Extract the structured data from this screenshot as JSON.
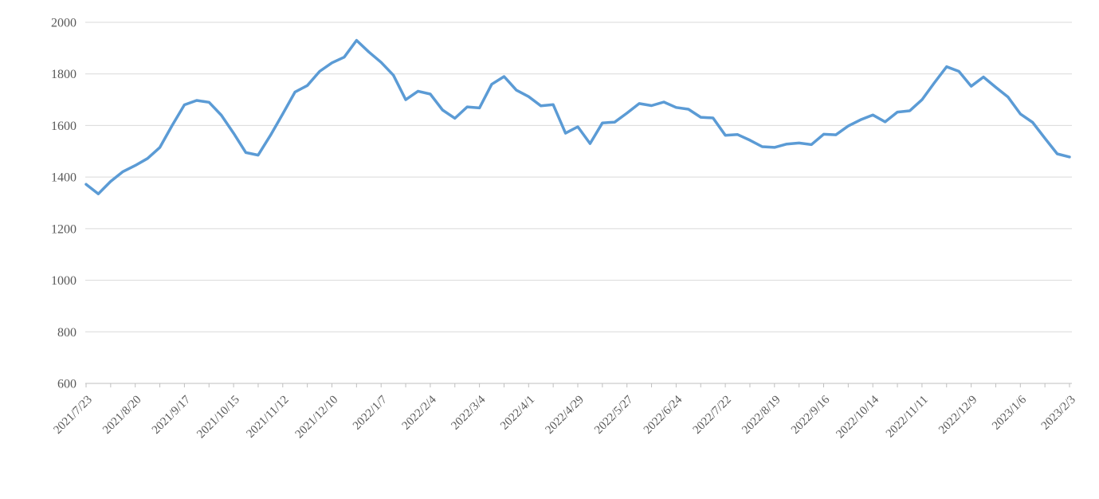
{
  "chart_data": {
    "type": "line",
    "title": "",
    "legend": "none",
    "grid": "horizontal",
    "line_color": "#5b9bd5",
    "gridline_color": "#d9d9d9",
    "axis_line_color": "#bfbfbf",
    "tick_label_color": "#595959",
    "ylim": [
      600,
      2000
    ],
    "y_ticks": [
      600,
      800,
      1000,
      1200,
      1400,
      1600,
      1800,
      2000
    ],
    "x_interval": "weekly",
    "label_every_n_points": 4,
    "x_tick_labels": [
      "2021/7/23",
      "2021/8/20",
      "2021/9/17",
      "2021/10/15",
      "2021/11/12",
      "2021/12/10",
      "2022/1/7",
      "2022/2/4",
      "2022/3/4",
      "2022/4/1",
      "2022/4/29",
      "2022/5/27",
      "2022/6/24",
      "2022/7/22",
      "2022/8/19",
      "2022/9/16",
      "2022/10/14",
      "2022/11/11",
      "2022/12/9",
      "2023/1/6",
      "2023/2/3"
    ],
    "values": [
      1372,
      1335,
      1383,
      1421,
      1445,
      1472,
      1515,
      1600,
      1680,
      1697,
      1690,
      1640,
      1570,
      1495,
      1485,
      1562,
      1645,
      1730,
      1755,
      1810,
      1843,
      1865,
      1930,
      1885,
      1845,
      1795,
      1700,
      1733,
      1722,
      1660,
      1628,
      1672,
      1668,
      1760,
      1790,
      1737,
      1712,
      1676,
      1681,
      1570,
      1595,
      1530,
      1610,
      1613,
      1648,
      1685,
      1677,
      1691,
      1670,
      1663,
      1632,
      1629,
      1562,
      1565,
      1543,
      1518,
      1515,
      1528,
      1532,
      1526,
      1566,
      1564,
      1598,
      1622,
      1641,
      1614,
      1652,
      1657,
      1700,
      1765,
      1828,
      1810,
      1752,
      1788,
      1748,
      1710,
      1645,
      1612,
      1550,
      1490,
      1478
    ]
  }
}
